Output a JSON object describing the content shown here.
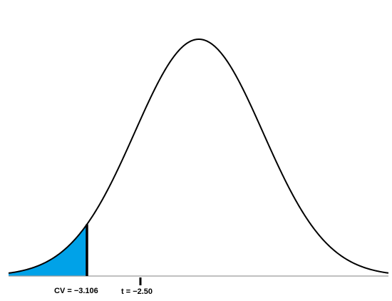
{
  "diagram": {
    "type": "t-distribution-critical-region",
    "tail": "left",
    "critical_value_label": "CV = −3.106",
    "test_statistic_label": "t = −2.50",
    "critical_value": -3.106,
    "test_statistic": -2.5,
    "colors": {
      "curve": "#000000",
      "rejection_region": "#00a2e8",
      "background": "#ffffff"
    }
  }
}
